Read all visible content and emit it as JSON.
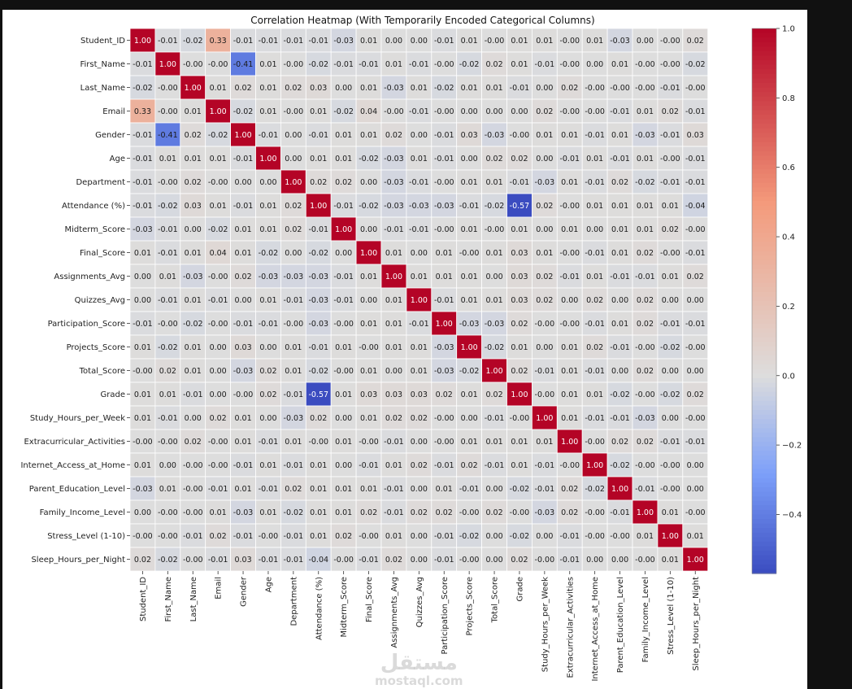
{
  "chart_data": {
    "type": "heatmap",
    "title": "Correlation Heatmap (With Temporarily Encoded Categorical Columns)",
    "labels": [
      "Student_ID",
      "First_Name",
      "Last_Name",
      "Email",
      "Gender",
      "Age",
      "Department",
      "Attendance (%)",
      "Midterm_Score",
      "Final_Score",
      "Assignments_Avg",
      "Quizzes_Avg",
      "Participation_Score",
      "Projects_Score",
      "Total_Score",
      "Grade",
      "Study_Hours_per_Week",
      "Extracurricular_Activities",
      "Internet_Access_at_Home",
      "Parent_Education_Level",
      "Family_Income_Level",
      "Stress_Level (1-10)",
      "Sleep_Hours_per_Night"
    ],
    "matrix": [
      [
        "1.00",
        "-0.01",
        "-0.02",
        "0.33",
        "-0.01",
        "-0.01",
        "-0.01",
        "-0.01",
        "-0.03",
        "0.01",
        "0.00",
        "0.00",
        "-0.01",
        "0.01",
        "-0.00",
        "0.01",
        "0.01",
        "-0.00",
        "0.01",
        "-0.03",
        "0.00",
        "-0.00",
        "0.02"
      ],
      [
        "-0.01",
        "1.00",
        "-0.00",
        "-0.00",
        "-0.41",
        "0.01",
        "-0.00",
        "-0.02",
        "-0.01",
        "-0.01",
        "0.01",
        "-0.01",
        "-0.00",
        "-0.02",
        "0.02",
        "0.01",
        "-0.01",
        "-0.00",
        "0.00",
        "0.01",
        "-0.00",
        "-0.00",
        "-0.02"
      ],
      [
        "-0.02",
        "-0.00",
        "1.00",
        "0.01",
        "0.02",
        "0.01",
        "0.02",
        "0.03",
        "0.00",
        "0.01",
        "-0.03",
        "0.01",
        "-0.02",
        "0.01",
        "0.01",
        "-0.01",
        "0.00",
        "0.02",
        "-0.00",
        "-0.00",
        "-0.00",
        "-0.01",
        "-0.00"
      ],
      [
        "0.33",
        "-0.00",
        "0.01",
        "1.00",
        "-0.02",
        "0.01",
        "-0.00",
        "0.01",
        "-0.02",
        "0.04",
        "-0.00",
        "-0.01",
        "-0.00",
        "0.00",
        "0.00",
        "0.00",
        "0.02",
        "-0.00",
        "-0.00",
        "-0.01",
        "0.01",
        "0.02",
        "-0.01"
      ],
      [
        "-0.01",
        "-0.41",
        "0.02",
        "-0.02",
        "1.00",
        "-0.01",
        "0.00",
        "-0.01",
        "0.01",
        "0.01",
        "0.02",
        "0.00",
        "-0.01",
        "0.03",
        "-0.03",
        "-0.00",
        "0.01",
        "0.01",
        "-0.01",
        "0.01",
        "-0.03",
        "-0.01",
        "0.03"
      ],
      [
        "-0.01",
        "0.01",
        "0.01",
        "0.01",
        "-0.01",
        "1.00",
        "0.00",
        "0.01",
        "0.01",
        "-0.02",
        "-0.03",
        "0.01",
        "-0.01",
        "0.00",
        "0.02",
        "0.02",
        "0.00",
        "-0.01",
        "0.01",
        "-0.01",
        "0.01",
        "-0.00",
        "-0.01"
      ],
      [
        "-0.01",
        "-0.00",
        "0.02",
        "-0.00",
        "0.00",
        "0.00",
        "1.00",
        "0.02",
        "0.02",
        "0.00",
        "-0.03",
        "-0.01",
        "-0.00",
        "0.01",
        "0.01",
        "-0.01",
        "-0.03",
        "0.01",
        "-0.01",
        "0.02",
        "-0.02",
        "-0.01",
        "-0.01"
      ],
      [
        "-0.01",
        "-0.02",
        "0.03",
        "0.01",
        "-0.01",
        "0.01",
        "0.02",
        "1.00",
        "-0.01",
        "-0.02",
        "-0.03",
        "-0.03",
        "-0.03",
        "-0.01",
        "-0.02",
        "-0.57",
        "0.02",
        "-0.00",
        "0.01",
        "0.01",
        "0.01",
        "0.01",
        "-0.04"
      ],
      [
        "-0.03",
        "-0.01",
        "0.00",
        "-0.02",
        "0.01",
        "0.01",
        "0.02",
        "-0.01",
        "1.00",
        "0.00",
        "-0.01",
        "-0.01",
        "-0.00",
        "0.01",
        "-0.00",
        "0.01",
        "0.00",
        "0.01",
        "0.00",
        "0.01",
        "0.01",
        "0.02",
        "-0.00"
      ],
      [
        "0.01",
        "-0.01",
        "0.01",
        "0.04",
        "0.01",
        "-0.02",
        "0.00",
        "-0.02",
        "0.00",
        "1.00",
        "0.01",
        "0.00",
        "0.01",
        "-0.00",
        "0.01",
        "0.03",
        "0.01",
        "-0.00",
        "-0.01",
        "0.01",
        "0.02",
        "-0.00",
        "-0.01"
      ],
      [
        "0.00",
        "0.01",
        "-0.03",
        "-0.00",
        "0.02",
        "-0.03",
        "-0.03",
        "-0.03",
        "-0.01",
        "0.01",
        "1.00",
        "0.01",
        "0.01",
        "0.01",
        "0.00",
        "0.03",
        "0.02",
        "-0.01",
        "0.01",
        "-0.01",
        "-0.01",
        "0.01",
        "0.02"
      ],
      [
        "0.00",
        "-0.01",
        "0.01",
        "-0.01",
        "0.00",
        "0.01",
        "-0.01",
        "-0.03",
        "-0.01",
        "0.00",
        "0.01",
        "1.00",
        "-0.01",
        "0.01",
        "0.01",
        "0.03",
        "0.02",
        "0.00",
        "0.02",
        "0.00",
        "0.02",
        "0.00",
        "0.00"
      ],
      [
        "-0.01",
        "-0.00",
        "-0.02",
        "-0.00",
        "-0.01",
        "-0.01",
        "-0.00",
        "-0.03",
        "-0.00",
        "0.01",
        "0.01",
        "-0.01",
        "1.00",
        "-0.03",
        "-0.03",
        "0.02",
        "-0.00",
        "-0.00",
        "-0.01",
        "0.01",
        "0.02",
        "-0.01",
        "-0.01"
      ],
      [
        "0.01",
        "-0.02",
        "0.01",
        "0.00",
        "0.03",
        "0.00",
        "0.01",
        "-0.01",
        "0.01",
        "-0.00",
        "0.01",
        "0.01",
        "-0.03",
        "1.00",
        "-0.02",
        "0.01",
        "0.00",
        "0.01",
        "0.02",
        "-0.01",
        "-0.00",
        "-0.02",
        "-0.00"
      ],
      [
        "-0.00",
        "0.02",
        "0.01",
        "0.00",
        "-0.03",
        "0.02",
        "0.01",
        "-0.02",
        "-0.00",
        "0.01",
        "0.00",
        "0.01",
        "-0.03",
        "-0.02",
        "1.00",
        "0.02",
        "-0.01",
        "0.01",
        "-0.01",
        "0.00",
        "0.02",
        "0.00",
        "0.00"
      ],
      [
        "0.01",
        "0.01",
        "-0.01",
        "0.00",
        "-0.00",
        "0.02",
        "-0.01",
        "-0.57",
        "0.01",
        "0.03",
        "0.03",
        "0.03",
        "0.02",
        "0.01",
        "0.02",
        "1.00",
        "-0.00",
        "0.01",
        "0.01",
        "-0.02",
        "-0.00",
        "-0.02",
        "0.02"
      ],
      [
        "0.01",
        "-0.01",
        "0.00",
        "0.02",
        "0.01",
        "0.00",
        "-0.03",
        "0.02",
        "0.00",
        "0.01",
        "0.02",
        "0.02",
        "-0.00",
        "0.00",
        "-0.01",
        "-0.00",
        "1.00",
        "0.01",
        "-0.01",
        "-0.01",
        "-0.03",
        "0.00",
        "-0.00"
      ],
      [
        "-0.00",
        "-0.00",
        "0.02",
        "-0.00",
        "0.01",
        "-0.01",
        "0.01",
        "-0.00",
        "0.01",
        "-0.00",
        "-0.01",
        "0.00",
        "-0.00",
        "0.01",
        "0.01",
        "0.01",
        "0.01",
        "1.00",
        "-0.00",
        "0.02",
        "0.02",
        "-0.01",
        "-0.01"
      ],
      [
        "0.01",
        "0.00",
        "-0.00",
        "-0.00",
        "-0.01",
        "0.01",
        "-0.01",
        "0.01",
        "0.00",
        "-0.01",
        "0.01",
        "0.02",
        "-0.01",
        "0.02",
        "-0.01",
        "0.01",
        "-0.01",
        "-0.00",
        "1.00",
        "-0.02",
        "-0.00",
        "-0.00",
        "0.00"
      ],
      [
        "-0.03",
        "0.01",
        "-0.00",
        "-0.01",
        "0.01",
        "-0.01",
        "0.02",
        "0.01",
        "0.01",
        "0.01",
        "-0.01",
        "0.00",
        "0.01",
        "-0.01",
        "0.00",
        "-0.02",
        "-0.01",
        "0.02",
        "-0.02",
        "1.00",
        "-0.01",
        "-0.00",
        "0.00"
      ],
      [
        "0.00",
        "-0.00",
        "-0.00",
        "0.01",
        "-0.03",
        "0.01",
        "-0.02",
        "0.01",
        "0.01",
        "0.02",
        "-0.01",
        "0.02",
        "0.02",
        "-0.00",
        "0.02",
        "-0.00",
        "-0.03",
        "0.02",
        "-0.00",
        "-0.01",
        "1.00",
        "0.01",
        "-0.00"
      ],
      [
        "-0.00",
        "-0.00",
        "-0.01",
        "0.02",
        "-0.01",
        "-0.00",
        "-0.01",
        "0.01",
        "0.02",
        "-0.00",
        "0.01",
        "0.00",
        "-0.01",
        "-0.02",
        "0.00",
        "-0.02",
        "0.00",
        "-0.01",
        "-0.00",
        "-0.00",
        "0.01",
        "1.00",
        "0.01"
      ],
      [
        "0.02",
        "-0.02",
        "-0.00",
        "-0.01",
        "0.03",
        "-0.01",
        "-0.01",
        "-0.04",
        "-0.00",
        "-0.01",
        "0.02",
        "0.00",
        "-0.01",
        "-0.00",
        "0.00",
        "0.02",
        "-0.00",
        "-0.01",
        "0.00",
        "0.00",
        "-0.00",
        "0.01",
        "1.00"
      ]
    ],
    "colormap": "coolwarm",
    "colorbar": {
      "range": [
        -0.57,
        1.0
      ],
      "ticks": [
        -0.4,
        -0.2,
        0.0,
        0.2,
        0.4,
        0.6,
        0.8,
        1.0
      ],
      "tick_labels": [
        "−0.4",
        "−0.2",
        "0.0",
        "0.2",
        "0.4",
        "0.6",
        "0.8",
        "1.0"
      ]
    },
    "grid": false,
    "legend": "colorbar-right"
  },
  "watermark": {
    "logo": "مستقل",
    "domain": "mostaql.com"
  }
}
